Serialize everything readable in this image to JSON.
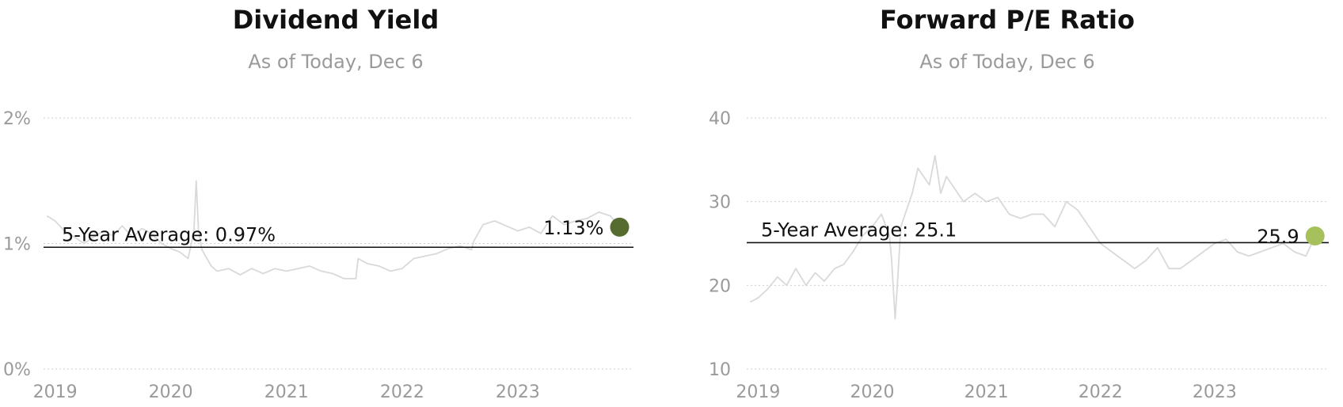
{
  "chart_data": [
    {
      "type": "line",
      "title": "Dividend Yield",
      "subtitle": "As of Today, Dec 6",
      "xlim": [
        2018.9,
        2024.0
      ],
      "ylim": [
        0,
        2
      ],
      "y_ticks": [
        0,
        1,
        2
      ],
      "y_tick_labels": [
        "0%",
        "1%",
        "2%"
      ],
      "x_ticks": [
        2019,
        2020,
        2021,
        2022,
        2023
      ],
      "x_tick_labels": [
        "2019",
        "2020",
        "2021",
        "2022",
        "2023"
      ],
      "grid": true,
      "average": 0.97,
      "average_label": "5-Year Average: 0.97%",
      "current": 1.13,
      "current_label": "1.13%",
      "current_marker_color": "#556b2f",
      "line_color": "#d9d9d9",
      "series": [
        {
          "x": [
            2018.93,
            2019.0,
            2019.08,
            2019.17,
            2019.25,
            2019.33,
            2019.42,
            2019.5,
            2019.58,
            2019.67,
            2019.75,
            2019.83,
            2019.92,
            2020.0,
            2020.08,
            2020.15,
            2020.2,
            2020.22,
            2020.24,
            2020.27,
            2020.3,
            2020.35,
            2020.4,
            2020.5,
            2020.6,
            2020.7,
            2020.8,
            2020.9,
            2021.0,
            2021.1,
            2021.2,
            2021.3,
            2021.4,
            2021.5,
            2021.6,
            2021.62,
            2021.7,
            2021.8,
            2021.9,
            2022.0,
            2022.1,
            2022.2,
            2022.3,
            2022.4,
            2022.5,
            2022.6,
            2022.62,
            2022.7,
            2022.8,
            2022.9,
            2023.0,
            2023.1,
            2023.2,
            2023.3,
            2023.4,
            2023.5,
            2023.6,
            2023.7,
            2023.8,
            2023.88
          ],
          "y": [
            1.22,
            1.18,
            1.1,
            1.05,
            1.0,
            1.05,
            1.1,
            1.06,
            1.14,
            1.05,
            1.12,
            1.08,
            1.0,
            0.96,
            0.93,
            0.88,
            1.1,
            1.5,
            1.1,
            0.95,
            0.9,
            0.82,
            0.78,
            0.8,
            0.75,
            0.8,
            0.76,
            0.8,
            0.78,
            0.8,
            0.82,
            0.78,
            0.76,
            0.72,
            0.72,
            0.88,
            0.84,
            0.82,
            0.78,
            0.8,
            0.88,
            0.9,
            0.92,
            0.96,
            0.98,
            0.95,
            1.02,
            1.15,
            1.18,
            1.14,
            1.1,
            1.13,
            1.08,
            1.22,
            1.15,
            1.18,
            1.2,
            1.25,
            1.22,
            1.13
          ]
        }
      ]
    },
    {
      "type": "line",
      "title": "Forward P/E Ratio",
      "subtitle": "As of Today, Dec 6",
      "xlim": [
        2018.9,
        2024.0
      ],
      "ylim": [
        10,
        40
      ],
      "y_ticks": [
        10,
        20,
        30,
        40
      ],
      "y_tick_labels": [
        "10",
        "20",
        "30",
        "40"
      ],
      "x_ticks": [
        2019,
        2020,
        2021,
        2022,
        2023
      ],
      "x_tick_labels": [
        "2019",
        "2020",
        "2021",
        "2022",
        "2023"
      ],
      "grid": true,
      "average": 25.1,
      "average_label": "5-Year Average: 25.1",
      "current": 25.9,
      "current_label": "25.9",
      "current_marker_color": "#a6c15b",
      "line_color": "#d9d9d9",
      "series": [
        {
          "x": [
            2018.93,
            2019.0,
            2019.08,
            2019.17,
            2019.25,
            2019.33,
            2019.42,
            2019.5,
            2019.58,
            2019.67,
            2019.75,
            2019.83,
            2019.92,
            2020.0,
            2020.08,
            2020.15,
            2020.17,
            2020.2,
            2020.22,
            2020.25,
            2020.3,
            2020.35,
            2020.4,
            2020.45,
            2020.5,
            2020.55,
            2020.6,
            2020.65,
            2020.7,
            2020.8,
            2020.9,
            2021.0,
            2021.1,
            2021.2,
            2021.3,
            2021.4,
            2021.5,
            2021.6,
            2021.7,
            2021.8,
            2021.9,
            2022.0,
            2022.1,
            2022.2,
            2022.3,
            2022.4,
            2022.5,
            2022.6,
            2022.7,
            2022.8,
            2022.9,
            2023.0,
            2023.1,
            2023.2,
            2023.3,
            2023.4,
            2023.5,
            2023.6,
            2023.7,
            2023.8,
            2023.88
          ],
          "y": [
            18,
            18.5,
            19.5,
            21,
            20,
            22,
            20,
            21.5,
            20.5,
            22,
            22.5,
            24,
            26,
            27,
            28.5,
            26,
            23,
            16,
            20,
            27,
            29,
            31,
            34,
            33,
            32,
            35.5,
            31,
            33,
            32,
            30,
            31,
            30,
            30.5,
            28.5,
            28,
            28.5,
            28.5,
            27,
            30,
            29,
            27,
            25,
            24,
            23,
            22,
            23,
            24.5,
            22,
            22,
            23,
            24,
            25,
            25.5,
            24,
            23.5,
            24,
            24.5,
            25,
            24,
            23.5,
            25.9
          ]
        }
      ]
    }
  ]
}
